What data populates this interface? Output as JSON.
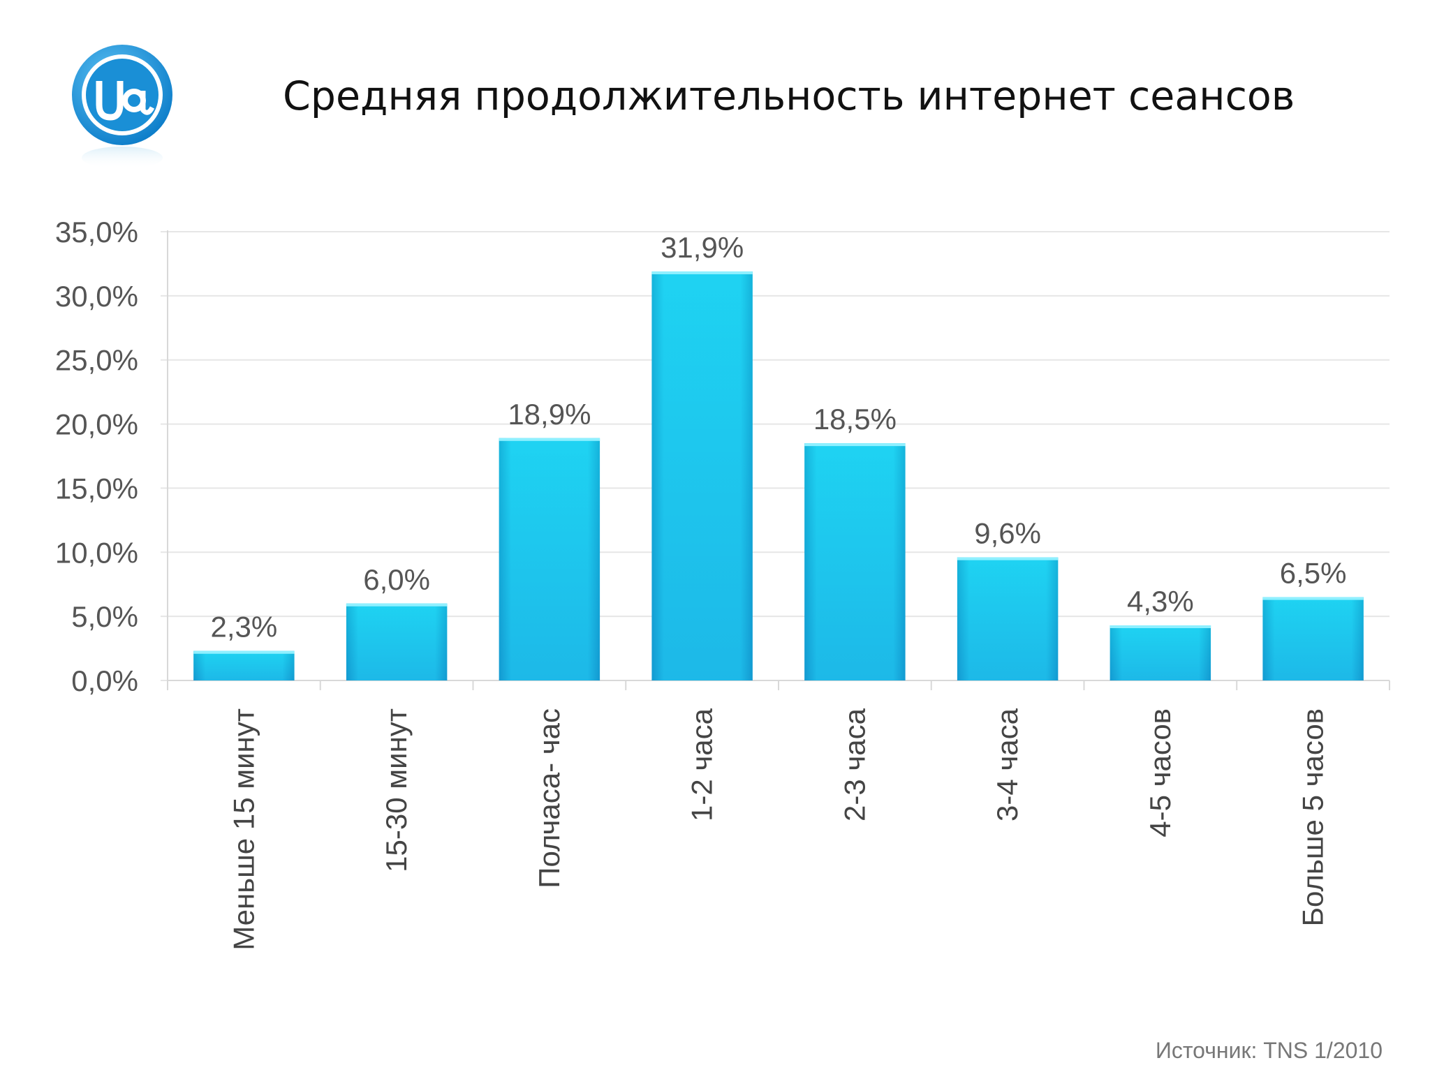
{
  "title": "Средняя продолжительность интернет сеансов",
  "source": "Источник: TNS 1/2010",
  "logo": {
    "icon": "ua-at-logo",
    "text": "UA",
    "color": "#1a8fd6"
  },
  "chart_data": {
    "type": "bar",
    "categories": [
      "Меньше 15 минут",
      "15-30 минут",
      "Полчаса- час",
      "1-2 часа",
      "2-3 часа",
      "3-4 часа",
      "4-5 часов",
      "Больше 5 часов"
    ],
    "values": [
      2.3,
      6.0,
      18.9,
      31.9,
      18.5,
      9.6,
      4.3,
      6.5
    ],
    "value_labels": [
      "2,3%",
      "6,0%",
      "18,9%",
      "31,9%",
      "18,5%",
      "9,6%",
      "4,3%",
      "6,5%"
    ],
    "ylim": [
      0,
      35
    ],
    "yticks": [
      0,
      5,
      10,
      15,
      20,
      25,
      30,
      35
    ],
    "ytick_labels": [
      "0,0%",
      "5,0%",
      "10,0%",
      "15,0%",
      "20,0%",
      "25,0%",
      "30,0%",
      "35,0%"
    ],
    "grid": true,
    "bar_color": "#1fc3ea"
  }
}
